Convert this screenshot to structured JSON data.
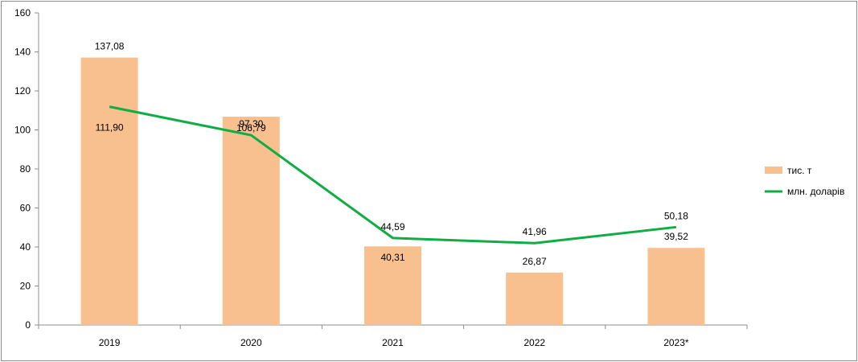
{
  "chart_data": {
    "type": "bar",
    "categories": [
      "2019",
      "2020",
      "2021",
      "2022",
      "2023*"
    ],
    "series": [
      {
        "name": "тис. т",
        "type": "bar",
        "values": [
          137.08,
          106.79,
          40.31,
          26.87,
          39.52
        ],
        "labels": [
          "137,08",
          "106,79",
          "40,31",
          "26,87",
          "39,52"
        ],
        "color": "#f9c08f"
      },
      {
        "name": "млн. доларів",
        "type": "line",
        "values": [
          111.9,
          97.3,
          44.59,
          41.96,
          50.18
        ],
        "labels": [
          "111,90",
          "97,30",
          "44,59",
          "41,96",
          "50,18"
        ],
        "color": "#10ad45"
      }
    ],
    "ylim": [
      0,
      160
    ],
    "yticks": [
      "0",
      "20",
      "40",
      "60",
      "80",
      "100",
      "120",
      "140",
      "160"
    ],
    "grid": false,
    "legend_position": "right"
  }
}
